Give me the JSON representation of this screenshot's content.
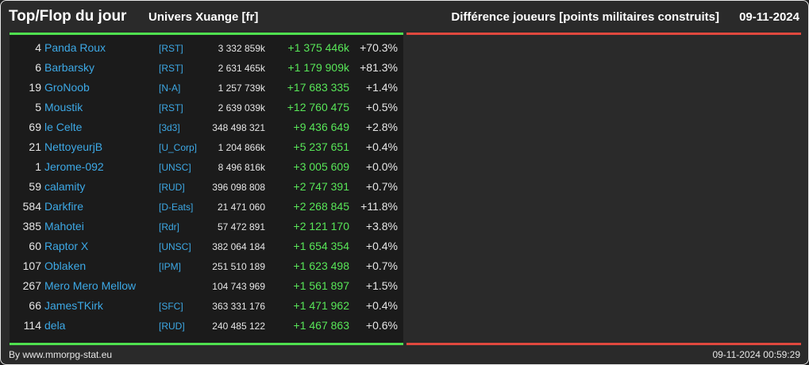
{
  "header": {
    "title": "Top/Flop du jour",
    "universe": "Univers Xuange [fr]",
    "metric": "Différence joueurs [points militaires construits]",
    "date": "09-11-2024"
  },
  "top": [
    {
      "rank": "4",
      "name": "Panda Roux",
      "alliance": "[RST]",
      "points": "3 332 859k",
      "diff": "+1 375 446k",
      "pct": "+70.3%"
    },
    {
      "rank": "6",
      "name": "Barbarsky",
      "alliance": "[RST]",
      "points": "2 631 465k",
      "diff": "+1 179 909k",
      "pct": "+81.3%"
    },
    {
      "rank": "19",
      "name": "GroNoob",
      "alliance": "[N-A]",
      "points": "1 257 739k",
      "diff": "+17 683 335",
      "pct": "+1.4%"
    },
    {
      "rank": "5",
      "name": "Moustik",
      "alliance": "[RST]",
      "points": "2 639 039k",
      "diff": "+12 760 475",
      "pct": "+0.5%"
    },
    {
      "rank": "69",
      "name": "le Celte",
      "alliance": "[3d3]",
      "points": "348 498 321",
      "diff": "+9 436 649",
      "pct": "+2.8%"
    },
    {
      "rank": "21",
      "name": "NettoyeurjB",
      "alliance": "[U_Corp]",
      "points": "1 204 866k",
      "diff": "+5 237 651",
      "pct": "+0.4%"
    },
    {
      "rank": "1",
      "name": "Jerome-092",
      "alliance": "[UNSC]",
      "points": "8 496 816k",
      "diff": "+3 005 609",
      "pct": "+0.0%"
    },
    {
      "rank": "59",
      "name": "calamity",
      "alliance": "[RUD]",
      "points": "396 098 808",
      "diff": "+2 747 391",
      "pct": "+0.7%"
    },
    {
      "rank": "584",
      "name": "Darkfire",
      "alliance": "[D-Eats]",
      "points": "21 471 060",
      "diff": "+2 268 845",
      "pct": "+11.8%"
    },
    {
      "rank": "385",
      "name": "Mahotei",
      "alliance": "[Rdr]",
      "points": "57 472 891",
      "diff": "+2 121 170",
      "pct": "+3.8%"
    },
    {
      "rank": "60",
      "name": "Raptor X",
      "alliance": "[UNSC]",
      "points": "382 064 184",
      "diff": "+1 654 354",
      "pct": "+0.4%"
    },
    {
      "rank": "107",
      "name": "Oblaken",
      "alliance": "[IPM]",
      "points": "251 510 189",
      "diff": "+1 623 498",
      "pct": "+0.7%"
    },
    {
      "rank": "267",
      "name": "Mero Mero Mellow",
      "alliance": "",
      "points": "104 743 969",
      "diff": "+1 561 897",
      "pct": "+1.5%"
    },
    {
      "rank": "66",
      "name": "JamesTKirk",
      "alliance": "[SFC]",
      "points": "363 331 176",
      "diff": "+1 471 962",
      "pct": "+0.4%"
    },
    {
      "rank": "114",
      "name": "dela",
      "alliance": "[RUD]",
      "points": "240 485 122",
      "diff": "+1 467 863",
      "pct": "+0.6%"
    }
  ],
  "footer": {
    "credit": "By www.mmorpg-stat.eu",
    "timestamp": "09-11-2024 00:59:29"
  },
  "colors": {
    "top_accent": "#4fe04f",
    "flop_accent": "#e0483e",
    "link": "#3da9e6",
    "positive": "#58e658"
  }
}
